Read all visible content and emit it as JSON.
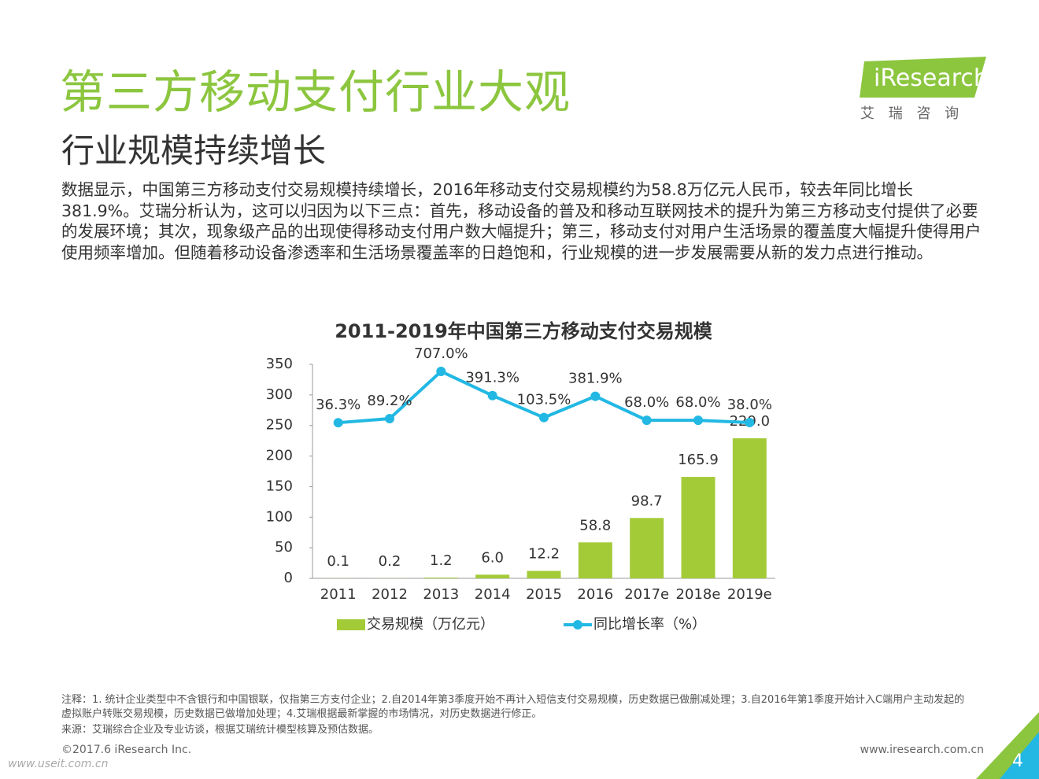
{
  "header": {
    "title": "第三方移动支付行业大观",
    "subtitle": "行业规模持续增长"
  },
  "logo": {
    "brand": "iResearch",
    "chinese": "艾 瑞 咨 询"
  },
  "body": {
    "paragraph": "数据显示，中国第三方移动支付交易规模持续增长，2016年移动支付交易规模约为58.8万亿元人民币，较去年同比增长381.9%。艾瑞分析认为，这可以归因为以下三点：首先，移动设备的普及和移动互联网技术的提升为第三方移动支付提供了必要的发展环境；其次，现象级产品的出现使得移动支付用户数大幅提升；第三，移动支付对用户生活场景的覆盖度大幅提升使得用户使用频率增加。但随着移动设备渗透率和生活场景覆盖率的日趋饱和，行业规模的进一步发展需要从新的发力点进行推动。"
  },
  "chart_data": {
    "type": "bar",
    "title": "2011-2019年中国第三方移动支付交易规模",
    "categories": [
      "2011",
      "2012",
      "2013",
      "2014",
      "2015",
      "2016",
      "2017e",
      "2018e",
      "2019e"
    ],
    "series": [
      {
        "name": "交易规模（万亿元）",
        "type": "bar",
        "color": "#a3cb38",
        "values": [
          0.1,
          0.2,
          1.2,
          6.0,
          12.2,
          58.8,
          98.7,
          165.9,
          229.0
        ],
        "value_labels": [
          "0.1",
          "0.2",
          "1.2",
          "6.0",
          "12.2",
          "58.8",
          "98.7",
          "165.9",
          "229.0"
        ]
      },
      {
        "name": "同比增长率（%）",
        "type": "line",
        "axis": "y2",
        "color": "#22b8e3",
        "values": [
          36.3,
          89.2,
          707.0,
          391.3,
          103.5,
          381.9,
          68.0,
          68.0,
          38.0
        ],
        "value_labels": [
          "36.3%",
          "89.2%",
          "707.0%",
          "391.3%",
          "103.5%",
          "381.9%",
          "68.0%",
          "68.0%",
          "38.0%"
        ]
      }
    ],
    "ylim": [
      0,
      350
    ],
    "yticks": [
      0,
      50,
      100,
      150,
      200,
      250,
      300,
      350
    ],
    "y2lim": [
      -2000,
      800
    ],
    "grid": false,
    "legend": "bottom"
  },
  "notes": {
    "note": "注释：1. 统计企业类型中不含银行和中国银联，仅指第三方支付企业；2.自2014年第3季度开始不再计入短信支付交易规模，历史数据已做删减处理；3.自2016年第1季度开始计入C端用户主动发起的虚拟账户转账交易规模，历史数据已做增加处理；4.艾瑞根据最新掌握的市场情况，对历史数据进行修正。",
    "source": "来源：艾瑞综合企业及专业访谈，根据艾瑞统计模型核算及预估数据。"
  },
  "footer": {
    "copyright": "©2017.6 iResearch Inc.",
    "website": "www.iresearch.com.cn",
    "page": "4",
    "watermark": "www.useit.com.cn"
  }
}
